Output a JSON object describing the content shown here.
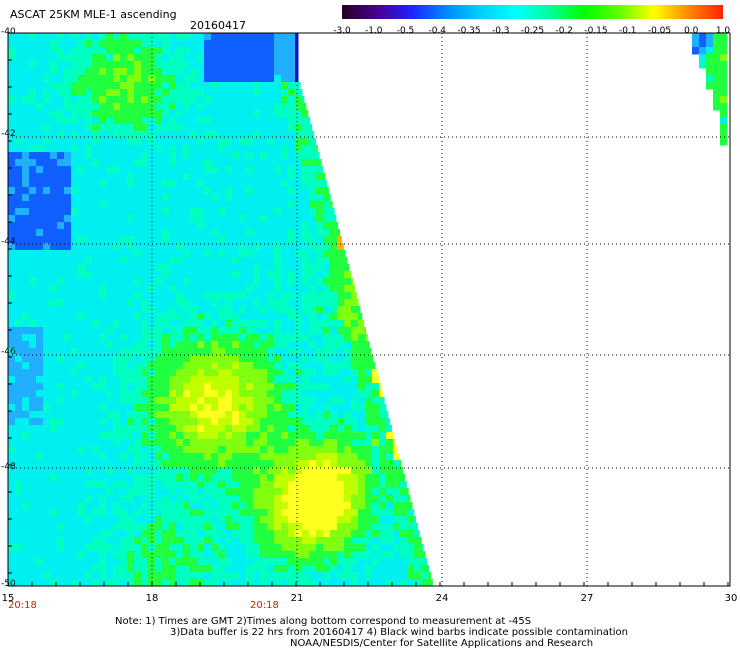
{
  "header": {
    "title": "ASCAT 25KM MLE-1 ascending",
    "date": "20160417"
  },
  "colorbar": {
    "labels": [
      "-3.0",
      "-1.0",
      "-0.5",
      "-0.4",
      "-0.35",
      "-0.3",
      "-0.25",
      "-0.2",
      "-0.15",
      "-0.1",
      "-0.05",
      "0.0",
      "1.0"
    ],
    "stops": [
      "#220020",
      "#4a0090",
      "#2020ff",
      "#0088ff",
      "#00d0ff",
      "#00ffff",
      "#00ff99",
      "#00ff00",
      "#60ff00",
      "#ffff00",
      "#ff8800",
      "#ff2200"
    ]
  },
  "map": {
    "lat_labels": [
      "-40",
      "-42",
      "-44",
      "-46",
      "-48",
      "-50"
    ],
    "lon_labels": [
      "15",
      "18",
      "21",
      "24",
      "27",
      "30"
    ],
    "time_labels": [
      "20:18",
      "20:18"
    ],
    "swath_colors": {
      "blue": "#1060ff",
      "lightblue": "#20b0ff",
      "cyan": "#00f0f0",
      "aqua": "#00ffc0",
      "green": "#20ff40",
      "lime": "#80ff10",
      "yellowgreen": "#c0ff00",
      "yellow": "#ffff20",
      "orange": "#ffb000",
      "navy": "#1010d0"
    }
  },
  "footer": {
    "note_line1": "Note: 1) Times are GMT 2)Times along bottom correspond to measurement at -45S",
    "note_line2": "3)Data buffer is 22 hrs from 20160417 4) Black wind barbs indicate possible contamination",
    "credit": "NOAA/NESDIS/Center for Satellite Applications and Research"
  }
}
